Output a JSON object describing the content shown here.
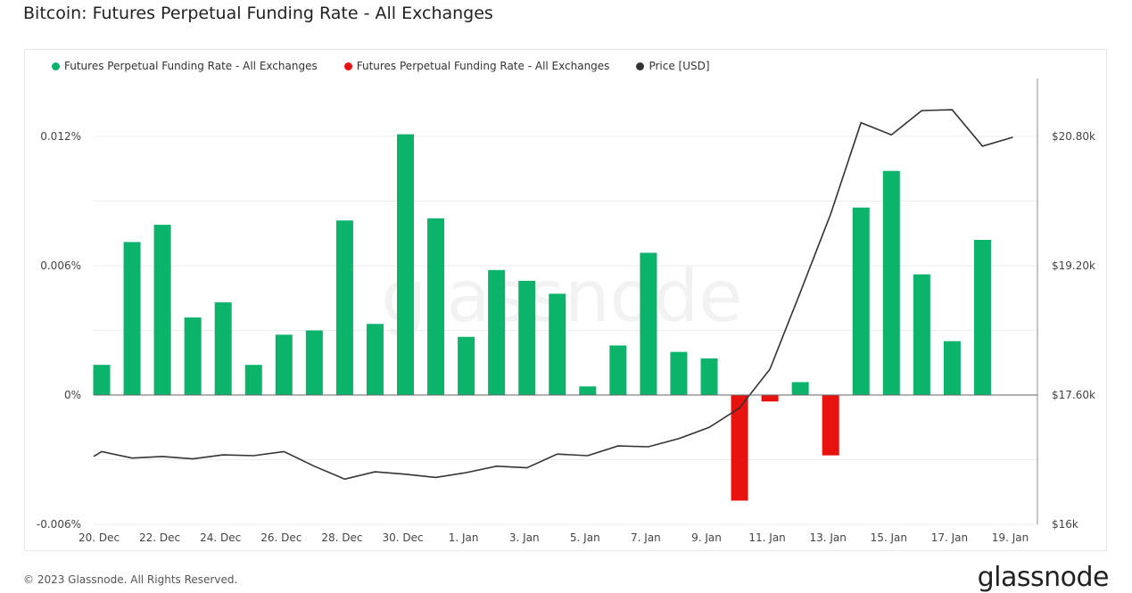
{
  "title": "Bitcoin: Futures Perpetual Funding Rate - All Exchanges",
  "footer": "© 2023 Glassnode. All Rights Reserved.",
  "logo": "glassnode",
  "watermark": "glassnode",
  "colors": {
    "positive": "#0bb36b",
    "negative": "#e8120f",
    "price": "#333333"
  },
  "chart_data": {
    "type": "bar",
    "title": "Bitcoin: Futures Perpetual Funding Rate - All Exchanges",
    "legend": [
      {
        "label": "Futures Perpetual Funding Rate - All Exchanges",
        "color": "#0bb36b"
      },
      {
        "label": "Futures Perpetual Funding Rate - All Exchanges",
        "color": "#e8120f"
      },
      {
        "label": "Price [USD]",
        "color": "#333333"
      }
    ],
    "legend_position": "top-left",
    "x": [
      "20 Dec",
      "21 Dec",
      "22 Dec",
      "23 Dec",
      "24 Dec",
      "25 Dec",
      "26 Dec",
      "27 Dec",
      "28 Dec",
      "29 Dec",
      "30 Dec",
      "31 Dec",
      "1 Jan",
      "2 Jan",
      "3 Jan",
      "4 Jan",
      "5 Jan",
      "6 Jan",
      "7 Jan",
      "8 Jan",
      "9 Jan",
      "10 Jan",
      "11 Jan",
      "12 Jan",
      "13 Jan",
      "14 Jan",
      "15 Jan",
      "16 Jan",
      "17 Jan",
      "18 Jan",
      "19 Jan"
    ],
    "x_ticks": [
      "20. Dec",
      "22. Dec",
      "24. Dec",
      "26. Dec",
      "28. Dec",
      "30. Dec",
      "1. Jan",
      "3. Jan",
      "5. Jan",
      "7. Jan",
      "9. Jan",
      "11. Jan",
      "13. Jan",
      "15. Jan",
      "17. Jan",
      "19. Jan"
    ],
    "funding_rate_percent": [
      0.0014,
      0.0071,
      0.0079,
      0.0036,
      0.0043,
      0.0014,
      0.0028,
      0.003,
      0.0081,
      0.0033,
      0.0121,
      0.0082,
      0.0027,
      0.0058,
      0.0053,
      0.0047,
      0.0004,
      0.0023,
      0.0066,
      0.002,
      0.0017,
      -0.0049,
      -0.0003,
      0.0006,
      -0.0028,
      0.0087,
      0.0104,
      0.0056,
      0.0025,
      0.0072,
      null
    ],
    "price_usd": [
      16900,
      16820,
      16840,
      16810,
      16860,
      16850,
      16900,
      16720,
      16560,
      16650,
      16620,
      16580,
      16640,
      16720,
      16700,
      16870,
      16850,
      16970,
      16960,
      17060,
      17200,
      17440,
      17920,
      18870,
      19840,
      20970,
      20820,
      21120,
      21130,
      20680,
      20790
    ],
    "y_left": {
      "ticks": [
        "0.012%",
        "0.006%",
        "0%",
        "-0.006%"
      ],
      "tick_values": [
        0.012,
        0.006,
        0,
        -0.006
      ],
      "ylim": [
        -0.006,
        0.0145
      ]
    },
    "y_right": {
      "ticks": [
        "$20.80k",
        "$19.20k",
        "$17.60k",
        "$16k"
      ],
      "tick_values": [
        20800,
        19200,
        17600,
        16000
      ],
      "ylim": [
        16000,
        21890
      ]
    },
    "grid": true
  }
}
